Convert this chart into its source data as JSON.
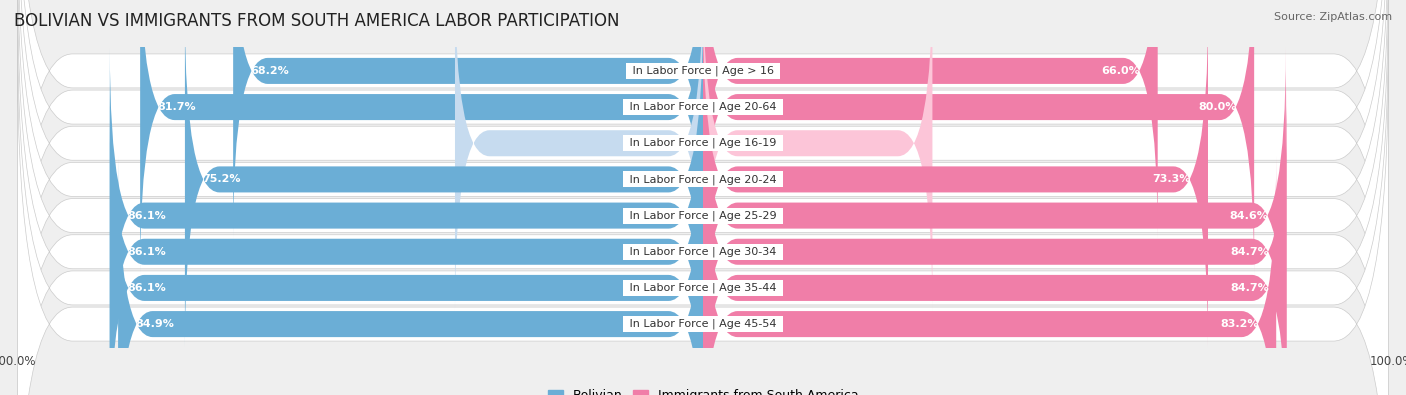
{
  "title": "BOLIVIAN VS IMMIGRANTS FROM SOUTH AMERICA LABOR PARTICIPATION",
  "source": "Source: ZipAtlas.com",
  "categories": [
    "In Labor Force | Age > 16",
    "In Labor Force | Age 20-64",
    "In Labor Force | Age 16-19",
    "In Labor Force | Age 20-24",
    "In Labor Force | Age 25-29",
    "In Labor Force | Age 30-34",
    "In Labor Force | Age 35-44",
    "In Labor Force | Age 45-54"
  ],
  "bolivian_values": [
    68.2,
    81.7,
    36.0,
    75.2,
    86.1,
    86.1,
    86.1,
    84.9
  ],
  "immigrant_values": [
    66.0,
    80.0,
    33.3,
    73.3,
    84.6,
    84.7,
    84.7,
    83.2
  ],
  "bolivian_color": "#6baed6",
  "bolivian_color_light": "#c6dbef",
  "immigrant_color": "#f07ea8",
  "immigrant_color_light": "#fcc5d8",
  "background_color": "#efefef",
  "row_bg_color": "#ffffff",
  "title_fontsize": 12,
  "label_fontsize": 8,
  "value_fontsize": 8,
  "legend_fontsize": 9
}
